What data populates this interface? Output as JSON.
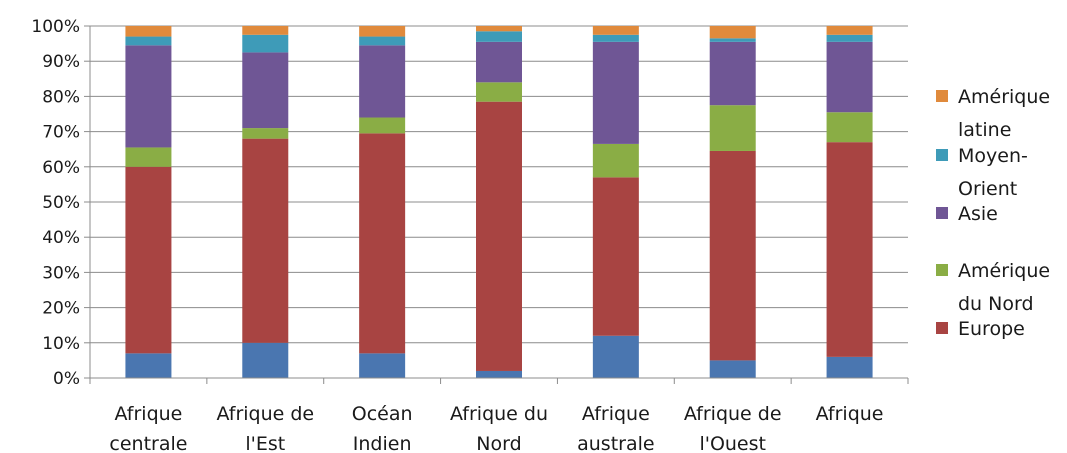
{
  "chart_data": {
    "type": "bar",
    "stacked": "percent",
    "title": "",
    "xlabel": "",
    "ylabel": "",
    "ylim": [
      0,
      100
    ],
    "y_ticks": [
      "0%",
      "10%",
      "20%",
      "30%",
      "40%",
      "50%",
      "60%",
      "70%",
      "80%",
      "90%",
      "100%"
    ],
    "grid": true,
    "legend_position": "right",
    "categories": [
      [
        "Afrique",
        "centrale"
      ],
      [
        "Afrique de",
        "l'Est"
      ],
      [
        "Océan",
        "Indien"
      ],
      [
        "Afrique du",
        "Nord"
      ],
      [
        "Afrique",
        "australe"
      ],
      [
        "Afrique de",
        "l'Ouest"
      ],
      [
        "Afrique",
        ""
      ]
    ],
    "series": [
      {
        "key": "blue",
        "color": "#4a76b0",
        "values": [
          7,
          10,
          7,
          2,
          12,
          5,
          6
        ]
      },
      {
        "name": "Europe",
        "label_lines": [
          "Europe"
        ],
        "color": "#a84442",
        "values": [
          53,
          58,
          62.5,
          76.5,
          45,
          59.5,
          61
        ]
      },
      {
        "name": "Amérique du Nord",
        "label_lines": [
          "Amérique",
          "du Nord"
        ],
        "color": "#8aad45",
        "values": [
          5.5,
          3,
          4.5,
          5.5,
          9.5,
          13,
          8.5
        ]
      },
      {
        "name": "Asie",
        "label_lines": [
          "Asie"
        ],
        "color": "#6f5695",
        "values": [
          29,
          21.5,
          20.5,
          11.5,
          29,
          18,
          20
        ]
      },
      {
        "name": "Moyen-Orient",
        "label_lines": [
          "Moyen-",
          "Orient"
        ],
        "color": "#3e9bb8",
        "values": [
          2.5,
          5,
          2.5,
          3,
          2,
          1,
          2
        ]
      },
      {
        "name": "Amérique latine",
        "label_lines": [
          "Amérique",
          "latine"
        ],
        "color": "#e08a3c",
        "values": [
          3,
          2.5,
          3,
          1.5,
          2.5,
          3.5,
          2.5
        ]
      }
    ],
    "legend": [
      {
        "name": "Amérique latine",
        "label_lines": [
          "Amérique",
          "latine"
        ]
      },
      {
        "name": "Moyen-Orient",
        "label_lines": [
          "Moyen-",
          "Orient"
        ]
      },
      {
        "name": "Asie",
        "label_lines": [
          "Asie"
        ]
      },
      {
        "name": "Amérique du Nord",
        "label_lines": [
          "Amérique",
          "du Nord"
        ]
      },
      {
        "name": "Europe",
        "label_lines": [
          "Europe"
        ]
      }
    ]
  }
}
